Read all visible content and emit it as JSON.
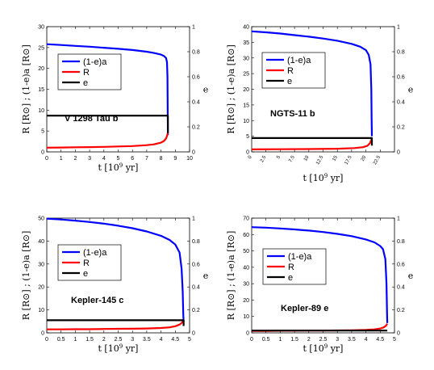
{
  "chart_data": [
    {
      "type": "line",
      "annotation": "V 1298 Tau b",
      "xlabel": "t [10^9 yr]",
      "ylabel": "R [R⊙] ; (1-e)a [R⊙]",
      "y2label": "e",
      "xlim": [
        0,
        10
      ],
      "ylim": [
        0,
        30
      ],
      "y2lim": [
        0,
        1
      ],
      "xticks": [
        "0",
        "1",
        "2",
        "3",
        "4",
        "5",
        "6",
        "7",
        "8",
        "9",
        "10"
      ],
      "yticks": [
        "0",
        "5",
        "10",
        "15",
        "20",
        "25",
        "30"
      ],
      "y2ticks": [
        "0",
        "0.2",
        "0.4",
        "0.6",
        "0.8",
        "1"
      ],
      "legend_position": "upper-left",
      "series": [
        {
          "name": "(1-e)a",
          "color": "#0000ff",
          "axis": "left",
          "x": [
            0,
            1,
            2,
            3,
            4,
            5,
            6,
            7,
            7.5,
            8,
            8.2,
            8.35,
            8.42,
            8.45,
            8.47,
            8.48
          ],
          "y": [
            25.8,
            25.6,
            25.4,
            25.2,
            24.95,
            24.7,
            24.4,
            24.0,
            23.7,
            23.3,
            23.0,
            22.5,
            21.5,
            18,
            10,
            4
          ]
        },
        {
          "name": "R",
          "color": "#ff0000",
          "axis": "left",
          "x": [
            0,
            1,
            2,
            3,
            4,
            5,
            6,
            7,
            7.5,
            8,
            8.2,
            8.35,
            8.42,
            8.46,
            8.48
          ],
          "y": [
            1.0,
            1.05,
            1.1,
            1.15,
            1.2,
            1.3,
            1.4,
            1.6,
            1.8,
            2.2,
            2.6,
            3.2,
            3.8,
            4.3,
            4.5
          ]
        },
        {
          "name": "e",
          "color": "#000000",
          "axis": "right",
          "x": [
            0,
            8.48,
            8.48
          ],
          "y": [
            0.29,
            0.29,
            0.15
          ]
        }
      ]
    },
    {
      "type": "line",
      "annotation": "NGTS-11 b",
      "xlabel": "t [10^9 yr]",
      "ylabel": "R [R⊙] ; (1-e)a [R⊙]",
      "y2label": "e",
      "xlim": [
        0,
        25
      ],
      "ylim": [
        0,
        40
      ],
      "y2lim": [
        0,
        1
      ],
      "xticks": [
        "0",
        "2.5",
        "5",
        "7.5",
        "10",
        "12.5",
        "15",
        "17.5",
        "20",
        "22.5"
      ],
      "yticks": [
        "0",
        "5",
        "10",
        "15",
        "20",
        "25",
        "30",
        "35",
        "40"
      ],
      "y2ticks": [
        "0",
        "0.2",
        "0.4",
        "0.6",
        "0.8",
        "1"
      ],
      "legend_position": "upper-left",
      "series": [
        {
          "name": "(1-e)a",
          "color": "#0000ff",
          "axis": "left",
          "x": [
            0,
            2.5,
            5,
            7.5,
            10,
            12.5,
            15,
            17.5,
            19,
            20,
            20.5,
            20.8,
            20.95,
            21.0,
            21.05
          ],
          "y": [
            38.5,
            38.2,
            37.8,
            37.3,
            36.8,
            36.2,
            35.5,
            34.5,
            33.6,
            32.5,
            31,
            28,
            20,
            10,
            5
          ]
        },
        {
          "name": "R",
          "color": "#ff0000",
          "axis": "left",
          "x": [
            0,
            5,
            10,
            15,
            18,
            19.5,
            20.3,
            20.7,
            20.95,
            21.05
          ],
          "y": [
            0.8,
            0.85,
            0.9,
            1.0,
            1.2,
            1.5,
            2.0,
            2.8,
            3.8,
            4.5
          ]
        },
        {
          "name": "e",
          "color": "#000000",
          "axis": "right",
          "x": [
            0,
            21.05,
            21.05
          ],
          "y": [
            0.11,
            0.11,
            0.05
          ]
        }
      ]
    },
    {
      "type": "line",
      "annotation": "Kepler-145 c",
      "xlabel": "t [10^9 yr]",
      "ylabel": "R [R⊙] ; (1-e)a [R⊙]",
      "y2label": "e",
      "xlim": [
        0,
        5
      ],
      "ylim": [
        0,
        50
      ],
      "y2lim": [
        0,
        1
      ],
      "xticks": [
        "0",
        "0.5",
        "1",
        "1.5",
        "2",
        "2.5",
        "3",
        "3.5",
        "4",
        "4.5",
        "5"
      ],
      "yticks": [
        "0",
        "10",
        "20",
        "30",
        "40",
        "50"
      ],
      "y2ticks": [
        "0",
        "0.2",
        "0.4",
        "0.6",
        "0.8",
        "1"
      ],
      "legend_position": "upper-left",
      "series": [
        {
          "name": "(1-e)a",
          "color": "#0000ff",
          "axis": "left",
          "x": [
            0,
            0.5,
            1,
            1.5,
            2,
            2.5,
            3,
            3.5,
            4,
            4.3,
            4.5,
            4.65,
            4.72,
            4.76,
            4.78,
            4.79
          ],
          "y": [
            49.8,
            49.4,
            48.9,
            48.3,
            47.6,
            46.7,
            45.6,
            44.2,
            42.3,
            40.5,
            38.5,
            35,
            28,
            18,
            8,
            5
          ]
        },
        {
          "name": "R",
          "color": "#ff0000",
          "axis": "left",
          "x": [
            0,
            0.5,
            1,
            1.5,
            2,
            2.5,
            3,
            3.5,
            4,
            4.3,
            4.5,
            4.65,
            4.74,
            4.79
          ],
          "y": [
            1.5,
            1.5,
            1.6,
            1.6,
            1.7,
            1.75,
            1.8,
            1.9,
            2.1,
            2.4,
            2.9,
            3.6,
            4.5,
            5.5
          ]
        },
        {
          "name": "e",
          "color": "#000000",
          "axis": "right",
          "x": [
            0,
            4.79,
            4.79
          ],
          "y": [
            0.11,
            0.11,
            0.06
          ]
        }
      ]
    },
    {
      "type": "line",
      "annotation": "Kepler-89 e",
      "xlabel": "t [10^9 yr]",
      "ylabel": "R [R⊙] ; (1-e)a [R⊙]",
      "y2label": "e",
      "xlim": [
        0,
        5
      ],
      "ylim": [
        0,
        70
      ],
      "y2lim": [
        0,
        1
      ],
      "xticks": [
        "0",
        "0.5",
        "1",
        "1.5",
        "2",
        "2.5",
        "3",
        "3.5",
        "4",
        "4.5",
        "5"
      ],
      "yticks": [
        "0",
        "10",
        "20",
        "30",
        "40",
        "50",
        "60",
        "70"
      ],
      "y2ticks": [
        "0",
        "0.2",
        "0.4",
        "0.6",
        "0.8",
        "1"
      ],
      "legend_position": "upper-left",
      "series": [
        {
          "name": "(1-e)a",
          "color": "#0000ff",
          "axis": "left",
          "x": [
            0,
            0.5,
            1,
            1.5,
            2,
            2.5,
            3,
            3.5,
            4,
            4.3,
            4.5,
            4.6,
            4.68,
            4.72,
            4.74,
            4.75
          ],
          "y": [
            64.5,
            64.2,
            63.7,
            63.1,
            62.4,
            61.5,
            60.4,
            59,
            57,
            55.2,
            53,
            51,
            45,
            30,
            12,
            6
          ]
        },
        {
          "name": "R",
          "color": "#ff0000",
          "axis": "left",
          "x": [
            0,
            0.5,
            1,
            1.5,
            2,
            2.5,
            3,
            3.5,
            4,
            4.3,
            4.5,
            4.62,
            4.7,
            4.75
          ],
          "y": [
            1.2,
            1.2,
            1.3,
            1.3,
            1.4,
            1.4,
            1.5,
            1.6,
            1.8,
            2.1,
            2.6,
            3.3,
            4.3,
            5.5
          ]
        },
        {
          "name": "e",
          "color": "#000000",
          "axis": "right",
          "x": [
            0,
            4.75
          ],
          "y": [
            0.02,
            0.02
          ]
        }
      ]
    }
  ]
}
